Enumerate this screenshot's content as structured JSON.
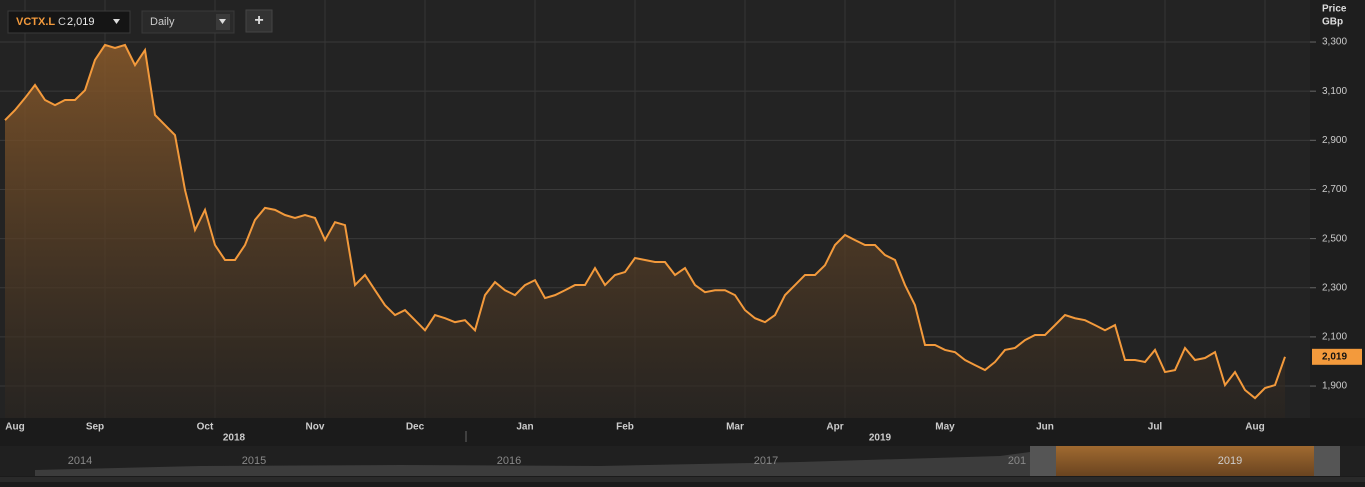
{
  "toolbar": {
    "symbol": "VCTX.L",
    "close_prefix": "C",
    "close": "2,019",
    "interval": "Daily",
    "add": "+"
  },
  "navigator": {
    "labels": [
      "2014",
      "2015",
      "2016",
      "2017",
      "201",
      "2019"
    ]
  },
  "chart_data": {
    "type": "line",
    "y_axis_title": "Price",
    "y_axis_unit": "GBp",
    "year_labels": [
      "2018",
      "2019"
    ],
    "color": "#f39a3c",
    "grid": true,
    "categories": [
      null,
      "Aug",
      null,
      null,
      null,
      null,
      null,
      null,
      null,
      "Sep",
      null,
      null,
      null,
      null,
      null,
      null,
      null,
      null,
      null,
      null,
      "Oct",
      null,
      null,
      null,
      null,
      null,
      null,
      null,
      null,
      null,
      null,
      "Nov",
      null,
      null,
      null,
      null,
      null,
      null,
      null,
      null,
      null,
      "Dec",
      null,
      null,
      null,
      null,
      null,
      null,
      null,
      null,
      null,
      null,
      "Jan",
      null,
      null,
      null,
      null,
      null,
      null,
      null,
      null,
      null,
      "Feb",
      null,
      null,
      null,
      null,
      null,
      null,
      null,
      null,
      null,
      null,
      "Mar",
      null,
      null,
      null,
      null,
      null,
      null,
      null,
      null,
      null,
      "Apr",
      null,
      null,
      null,
      null,
      null,
      null,
      null,
      null,
      null,
      null,
      "May",
      null,
      null,
      null,
      null,
      null,
      null,
      null,
      null,
      null,
      "Jun",
      null,
      null,
      null,
      null,
      null,
      null,
      null,
      null,
      null,
      null,
      "Jul",
      null,
      null,
      null,
      null,
      null,
      null,
      null,
      null,
      null,
      "Aug",
      null,
      null,
      null
    ],
    "values": [
      2982,
      3023,
      3072,
      3125,
      3064,
      3043,
      3064,
      3064,
      3104,
      3227,
      3288,
      3276,
      3288,
      3206,
      3267,
      3003,
      2962,
      2921,
      2698,
      2535,
      2617,
      2474,
      2413,
      2413,
      2474,
      2576,
      2625,
      2617,
      2596,
      2584,
      2596,
      2584,
      2494,
      2567,
      2555,
      2311,
      2352,
      2290,
      2229,
      2189,
      2209,
      2168,
      2127,
      2189,
      2176,
      2160,
      2168,
      2127,
      2270,
      2323,
      2290,
      2270,
      2311,
      2331,
      2258,
      2270,
      2290,
      2311,
      2311,
      2380,
      2311,
      2352,
      2364,
      2421,
      2413,
      2405,
      2405,
      2352,
      2380,
      2311,
      2282,
      2290,
      2290,
      2270,
      2209,
      2176,
      2160,
      2189,
      2270,
      2311,
      2352,
      2352,
      2392,
      2474,
      2515,
      2494,
      2474,
      2474,
      2433,
      2413,
      2311,
      2229,
      2067,
      2067,
      2047,
      2038,
      2006,
      1985,
      1965,
      1998,
      2047,
      2055,
      2087,
      2108,
      2108,
      2148,
      2189,
      2176,
      2168,
      2148,
      2127,
      2148,
      2006,
      2006,
      1998,
      2047,
      1957,
      1965,
      2055,
      2006,
      2014,
      2038,
      1904,
      1957,
      1884,
      1851,
      1892,
      1904,
      2019
    ],
    "last_label": {
      "value": 2019,
      "label": "2,019"
    },
    "ylim": [
      1770,
      3471
    ],
    "yticks": [
      {
        "value": 1900,
        "label": "1,900"
      },
      {
        "value": 2100,
        "label": "2,100"
      },
      {
        "value": 2300,
        "label": "2,300"
      },
      {
        "value": 2500,
        "label": "2,500"
      },
      {
        "value": 2700,
        "label": "2,700"
      },
      {
        "value": 2900,
        "label": "2,900"
      },
      {
        "value": 3100,
        "label": "3,100"
      },
      {
        "value": 3300,
        "label": "3,300"
      }
    ]
  }
}
